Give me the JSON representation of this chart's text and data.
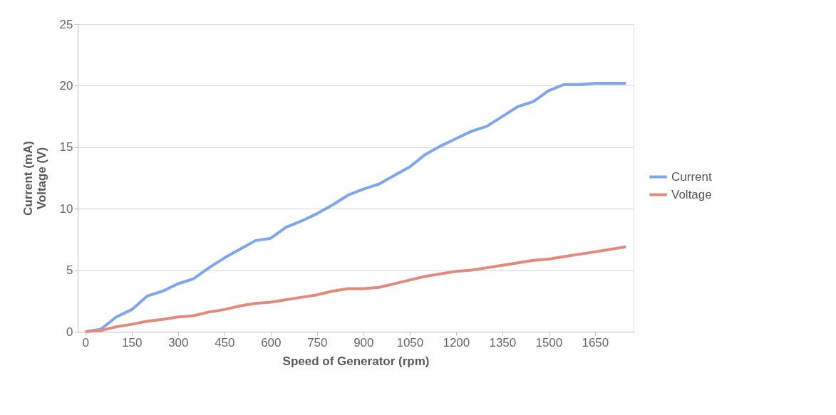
{
  "chart_data": {
    "type": "line",
    "xlabel": "Speed of Generator (rpm)",
    "ylabel": "Current (mA)\nVoltage (V)",
    "x": [
      0,
      50,
      100,
      150,
      200,
      250,
      300,
      350,
      400,
      450,
      500,
      550,
      600,
      650,
      700,
      750,
      800,
      850,
      900,
      950,
      1000,
      1050,
      1100,
      1150,
      1200,
      1250,
      1300,
      1350,
      1400,
      1450,
      1500,
      1550,
      1600,
      1650,
      1700,
      1750
    ],
    "series": [
      {
        "name": "Current",
        "color": "#7fa6ec",
        "values": [
          0,
          0.2,
          1.2,
          1.8,
          2.9,
          3.3,
          3.9,
          4.3,
          5.2,
          6.0,
          6.7,
          7.4,
          7.6,
          8.5,
          9.0,
          9.6,
          10.3,
          11.1,
          11.6,
          12.0,
          12.7,
          13.4,
          14.4,
          15.1,
          15.7,
          16.3,
          16.7,
          17.5,
          18.3,
          18.7,
          19.6,
          20.1,
          20.1,
          20.2,
          20.2,
          20.2
        ]
      },
      {
        "name": "Voltage",
        "color": "#e08b7e",
        "values": [
          0,
          0.1,
          0.4,
          0.6,
          0.85,
          1.0,
          1.2,
          1.3,
          1.6,
          1.8,
          2.1,
          2.3,
          2.4,
          2.6,
          2.8,
          3.0,
          3.3,
          3.5,
          3.5,
          3.6,
          3.9,
          4.2,
          4.5,
          4.7,
          4.9,
          5.0,
          5.2,
          5.4,
          5.6,
          5.8,
          5.9,
          6.1,
          6.3,
          6.5,
          6.7,
          6.9
        ]
      }
    ],
    "xlim": [
      -25,
      1775
    ],
    "xticks": [
      0,
      150,
      300,
      450,
      600,
      750,
      900,
      1050,
      1200,
      1350,
      1500,
      1650
    ],
    "ylim": [
      0,
      25
    ],
    "yticks": [
      0,
      5,
      10,
      15,
      20,
      25
    ],
    "grid": "y",
    "legend": "right",
    "marker": "none",
    "line_style": "solid"
  }
}
